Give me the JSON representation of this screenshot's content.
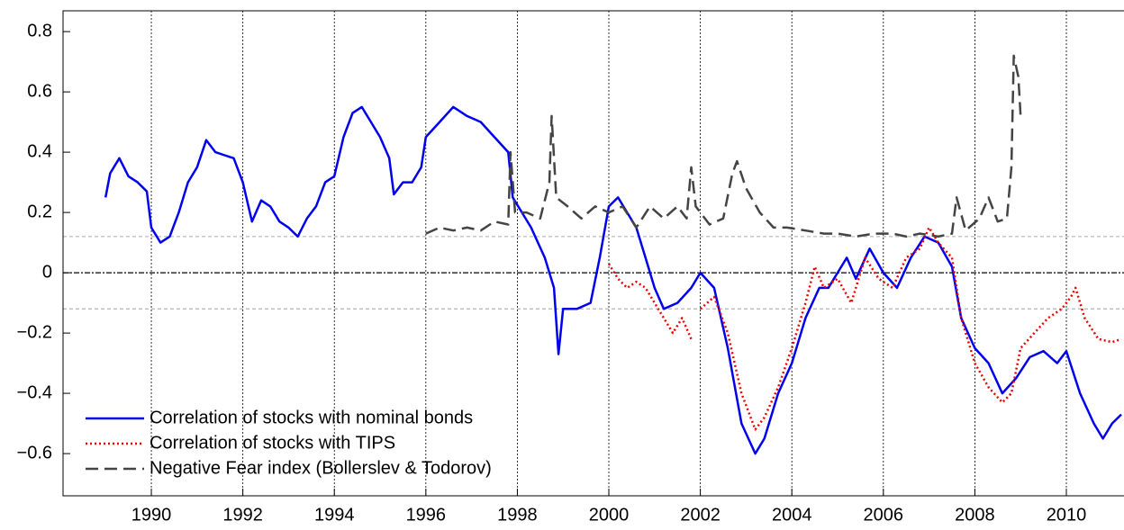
{
  "chart_data": {
    "type": "line",
    "xlim": [
      1988.07,
      2011.26
    ],
    "xticks": [
      1990,
      1992,
      1994,
      1996,
      1998,
      2000,
      2002,
      2004,
      2006,
      2008,
      2010
    ],
    "ylim": [
      -0.74,
      0.869
    ],
    "yticks": [
      {
        "value": -0.6,
        "label": "−0.6"
      },
      {
        "value": -0.4,
        "label": "−0.4"
      },
      {
        "value": -0.2,
        "label": "−0.2"
      },
      0,
      0.2,
      0.4,
      0.6,
      0.8
    ],
    "grid": "x",
    "hlines": [
      {
        "value": 0.12,
        "color": "#bbbbbb"
      },
      {
        "value": 0,
        "color": "#000000"
      },
      {
        "value": -0.12,
        "color": "#bbbbbb"
      }
    ],
    "legend": "lower left",
    "series": [
      {
        "name": "Correlation of stocks with nominal bonds",
        "color": "#0000ee",
        "dash": "solid",
        "x": [
          1989.0,
          1989.1,
          1989.3,
          1989.5,
          1989.7,
          1989.9,
          1990.0,
          1990.2,
          1990.4,
          1990.6,
          1990.8,
          1991.0,
          1991.2,
          1991.4,
          1991.6,
          1991.8,
          1992.0,
          1992.2,
          1992.4,
          1992.6,
          1992.8,
          1993.0,
          1993.2,
          1993.4,
          1993.6,
          1993.8,
          1994.0,
          1994.2,
          1994.4,
          1994.6,
          1994.8,
          1995.0,
          1995.2,
          1995.3,
          1995.5,
          1995.7,
          1995.9,
          1996.0,
          1996.3,
          1996.6,
          1996.9,
          1997.2,
          1997.5,
          1997.8,
          1997.9,
          1998.1,
          1998.3,
          1998.6,
          1998.8,
          1998.9,
          1999.0,
          1999.3,
          1999.6,
          1999.8,
          2000.0,
          2000.2,
          2000.4,
          2000.6,
          2000.8,
          2001.0,
          2001.2,
          2001.5,
          2001.8,
          2002.0,
          2002.3,
          2002.6,
          2002.9,
          2003.2,
          2003.4,
          2003.7,
          2004.0,
          2004.3,
          2004.6,
          2004.8,
          2005.0,
          2005.2,
          2005.4,
          2005.7,
          2006.0,
          2006.3,
          2006.6,
          2006.9,
          2007.2,
          2007.5,
          2007.7,
          2008.0,
          2008.3,
          2008.6,
          2008.9,
          2009.2,
          2009.5,
          2009.8,
          2010.0,
          2010.3,
          2010.6,
          2010.8,
          2011.0,
          2011.2
        ],
        "values": [
          0.25,
          0.33,
          0.38,
          0.32,
          0.3,
          0.27,
          0.15,
          0.1,
          0.12,
          0.2,
          0.3,
          0.35,
          0.44,
          0.4,
          0.39,
          0.38,
          0.3,
          0.17,
          0.24,
          0.22,
          0.17,
          0.15,
          0.12,
          0.18,
          0.22,
          0.3,
          0.32,
          0.45,
          0.53,
          0.55,
          0.5,
          0.45,
          0.38,
          0.26,
          0.3,
          0.3,
          0.35,
          0.45,
          0.5,
          0.55,
          0.52,
          0.5,
          0.45,
          0.4,
          0.25,
          0.2,
          0.15,
          0.05,
          -0.05,
          -0.27,
          -0.12,
          -0.12,
          -0.1,
          0.05,
          0.22,
          0.25,
          0.2,
          0.15,
          0.05,
          -0.05,
          -0.12,
          -0.1,
          -0.05,
          0.0,
          -0.05,
          -0.25,
          -0.5,
          -0.6,
          -0.55,
          -0.4,
          -0.3,
          -0.15,
          -0.05,
          -0.05,
          0.0,
          0.05,
          -0.02,
          0.08,
          0.0,
          -0.05,
          0.05,
          0.12,
          0.1,
          0.02,
          -0.15,
          -0.25,
          -0.3,
          -0.4,
          -0.35,
          -0.28,
          -0.26,
          -0.3,
          -0.26,
          -0.4,
          -0.5,
          -0.55,
          -0.5,
          -0.47
        ]
      },
      {
        "name": "Correlation of stocks with TIPS",
        "color": "#ee0000",
        "dash": "dotted",
        "x": [
          2000.0,
          2000.2,
          2000.4,
          2000.6,
          2000.8,
          2001.0,
          2001.2,
          2001.4,
          2001.6,
          2001.8,
          2001.9,
          2002.0,
          2002.3,
          2002.6,
          2002.9,
          2003.2,
          2003.4,
          2003.7,
          2004.0,
          2004.3,
          2004.5,
          2004.7,
          2005.0,
          2005.3,
          2005.6,
          2005.9,
          2006.2,
          2006.5,
          2006.8,
          2007.0,
          2007.2,
          2007.5,
          2007.7,
          2008.0,
          2008.3,
          2008.6,
          2008.8,
          2009.0,
          2009.3,
          2009.6,
          2009.9,
          2010.1,
          2010.2,
          2010.4,
          2010.7,
          2011.0,
          2011.2
        ],
        "values": [
          0.03,
          -0.02,
          -0.05,
          -0.03,
          -0.05,
          -0.1,
          -0.15,
          -0.2,
          -0.15,
          -0.22,
          null,
          -0.12,
          -0.08,
          -0.2,
          -0.4,
          -0.52,
          -0.48,
          -0.38,
          -0.25,
          -0.1,
          0.02,
          -0.05,
          -0.02,
          -0.1,
          0.05,
          -0.02,
          -0.05,
          0.05,
          0.08,
          0.15,
          0.1,
          0.05,
          -0.15,
          -0.3,
          -0.38,
          -0.43,
          -0.4,
          -0.25,
          -0.2,
          -0.15,
          -0.12,
          -0.08,
          -0.05,
          -0.15,
          -0.22,
          -0.23,
          -0.22
        ]
      },
      {
        "name": "Negative Fear index (Bollerslev & Todorov)",
        "color": "#444444",
        "dash": "dashed",
        "x": [
          1996.0,
          1996.3,
          1996.6,
          1996.9,
          1997.2,
          1997.5,
          1997.8,
          1997.85,
          1997.95,
          1998.2,
          1998.5,
          1998.7,
          1998.75,
          1998.85,
          1999.1,
          1999.4,
          1999.7,
          2000.0,
          2000.3,
          2000.6,
          2000.9,
          2001.2,
          2001.5,
          2001.7,
          2001.8,
          2001.9,
          2002.2,
          2002.5,
          2002.7,
          2002.8,
          2003.0,
          2003.3,
          2003.6,
          2003.9,
          2004.3,
          2004.7,
          2005.0,
          2005.4,
          2005.8,
          2006.2,
          2006.5,
          2006.8,
          2007.2,
          2007.5,
          2007.6,
          2007.8,
          2008.1,
          2008.3,
          2008.5,
          2008.7,
          2008.8,
          2008.85,
          2008.95,
          2009.0
        ],
        "values": [
          0.13,
          0.15,
          0.14,
          0.15,
          0.14,
          0.17,
          0.16,
          0.4,
          0.2,
          0.2,
          0.18,
          0.3,
          0.52,
          0.25,
          0.22,
          0.18,
          0.22,
          0.2,
          0.22,
          0.15,
          0.22,
          0.18,
          0.22,
          0.18,
          0.35,
          0.22,
          0.16,
          0.18,
          0.33,
          0.37,
          0.28,
          0.2,
          0.15,
          0.15,
          0.14,
          0.13,
          0.13,
          0.12,
          0.13,
          0.13,
          0.12,
          0.13,
          0.12,
          0.13,
          0.25,
          0.14,
          0.18,
          0.25,
          0.17,
          0.18,
          0.35,
          0.72,
          0.65,
          0.52
        ]
      }
    ]
  }
}
